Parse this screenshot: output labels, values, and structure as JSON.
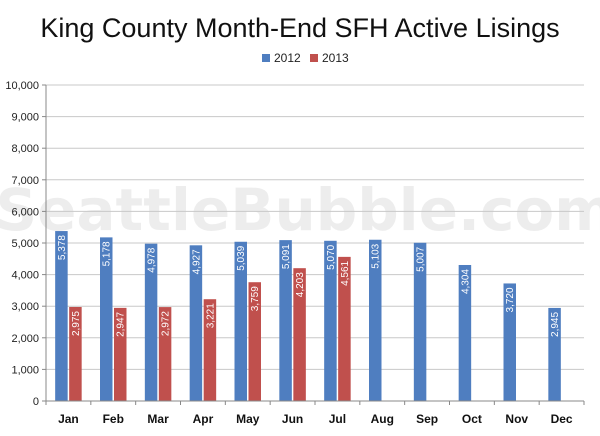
{
  "watermark": "SeattleBubble.com",
  "colors": {
    "series_2012": "#4f7ec0",
    "series_2013": "#c0504d",
    "grid": "#c8c8c8",
    "axis": "#888888"
  },
  "chart_data": {
    "type": "bar",
    "title": "King County Month-End SFH Active Lisings",
    "categories": [
      "Jan",
      "Feb",
      "Mar",
      "Apr",
      "May",
      "Jun",
      "Jul",
      "Aug",
      "Sep",
      "Oct",
      "Nov",
      "Dec"
    ],
    "series": [
      {
        "name": "2012",
        "values": [
          5378,
          5178,
          4978,
          4927,
          5039,
          5091,
          5070,
          5103,
          5007,
          4304,
          3720,
          2945
        ]
      },
      {
        "name": "2013",
        "values": [
          2975,
          2947,
          2972,
          3221,
          3759,
          4203,
          4561,
          null,
          null,
          null,
          null,
          null
        ]
      }
    ],
    "ylim": [
      0,
      10000
    ],
    "yticks": [
      "0",
      "1,000",
      "2,000",
      "3,000",
      "4,000",
      "5,000",
      "6,000",
      "7,000",
      "8,000",
      "9,000",
      "10,000"
    ],
    "grid": true,
    "legend": "top-center",
    "data_labels": "rotated inside bars"
  }
}
